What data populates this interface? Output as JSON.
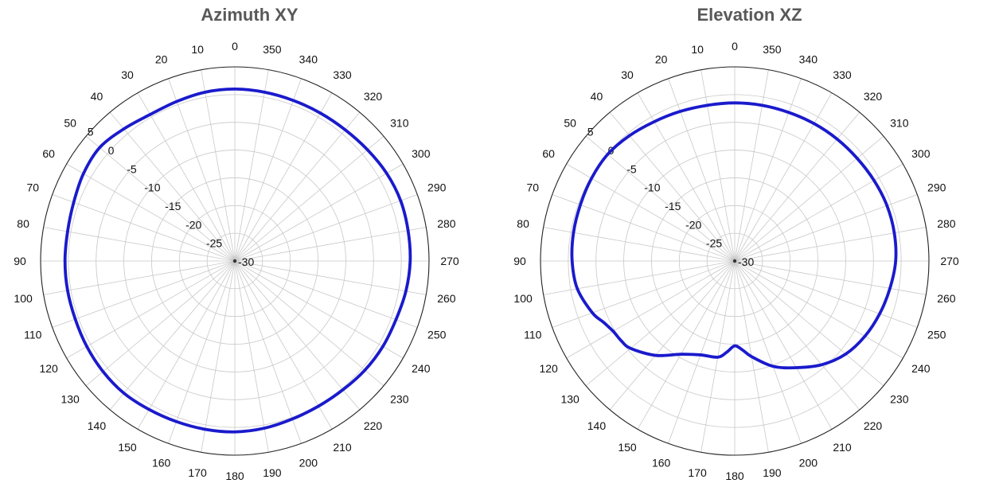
{
  "chart_data": [
    {
      "type": "polar-line",
      "title": "Azimuth XY",
      "angular_unit": "deg",
      "angle_zero": "top",
      "angle_direction": "counterclockwise",
      "angular_ticks": [
        0,
        10,
        20,
        30,
        40,
        50,
        60,
        70,
        80,
        90,
        100,
        110,
        120,
        130,
        140,
        150,
        160,
        170,
        180,
        190,
        200,
        210,
        220,
        230,
        240,
        250,
        260,
        270,
        280,
        290,
        300,
        310,
        320,
        330,
        340,
        350
      ],
      "radial_range": [
        -30,
        5
      ],
      "radial_ticks": [
        -30,
        -25,
        -20,
        -15,
        -10,
        -5,
        0,
        5
      ],
      "grid": true,
      "series_color": "#1a1acc",
      "series": [
        {
          "theta": [
            0,
            10,
            20,
            30,
            40,
            50,
            60,
            70,
            80,
            90,
            100,
            110,
            120,
            130,
            140,
            150,
            160,
            170,
            180,
            190,
            200,
            210,
            220,
            230,
            240,
            250,
            260,
            270,
            280,
            290,
            300,
            310,
            320,
            330,
            340,
            350
          ],
          "r": [
            1.0,
            0.9,
            0.6,
            0.5,
            1.1,
            1.8,
            1.5,
            0.9,
            0.6,
            0.6,
            0.6,
            0.6,
            0.8,
            1.0,
            1.1,
            0.9,
            0.8,
            0.8,
            0.8,
            0.6,
            0.3,
            0.2,
            0.3,
            0.6,
            0.8,
            0.9,
            1.3,
            1.6,
            1.7,
            1.8,
            1.6,
            1.2,
            0.9,
            0.8,
            0.8,
            0.9
          ]
        }
      ]
    },
    {
      "type": "polar-line",
      "title": "Elevation XZ",
      "angular_unit": "deg",
      "angle_zero": "top",
      "angle_direction": "counterclockwise",
      "angular_ticks": [
        0,
        10,
        20,
        30,
        40,
        50,
        60,
        70,
        80,
        90,
        100,
        110,
        120,
        130,
        140,
        150,
        160,
        170,
        180,
        190,
        200,
        210,
        220,
        230,
        240,
        250,
        260,
        270,
        280,
        290,
        300,
        310,
        320,
        330,
        340,
        350
      ],
      "radial_range": [
        -30,
        5
      ],
      "radial_ticks": [
        -30,
        -25,
        -20,
        -15,
        -10,
        -5,
        0,
        5
      ],
      "grid": true,
      "series_color": "#1a1acc",
      "series": [
        {
          "theta": [
            0,
            10,
            20,
            30,
            40,
            50,
            60,
            70,
            80,
            90,
            100,
            110,
            115,
            120,
            125,
            130,
            140,
            150,
            160,
            170,
            175,
            180,
            185,
            190,
            200,
            210,
            220,
            230,
            240,
            250,
            260,
            270,
            280,
            290,
            300,
            310,
            320,
            330,
            340,
            350
          ],
          "r": [
            -1.5,
            -1.5,
            -1.3,
            -1.0,
            -0.5,
            -0.1,
            -0.2,
            -0.4,
            -0.5,
            -0.7,
            -1.2,
            -2.7,
            -3.9,
            -4.7,
            -5.0,
            -5.5,
            -7.8,
            -10.6,
            -12.0,
            -12.4,
            -13.5,
            -14.7,
            -13.9,
            -12.5,
            -9.8,
            -7.8,
            -5.6,
            -3.9,
            -2.9,
            -2.2,
            -1.6,
            -1.0,
            -0.8,
            -0.8,
            -1.0,
            -1.2,
            -1.3,
            -1.4,
            -1.5,
            -1.5
          ]
        }
      ]
    }
  ],
  "plots": [
    {
      "title": "Azimuth XY"
    },
    {
      "title": "Elevation XZ"
    }
  ]
}
